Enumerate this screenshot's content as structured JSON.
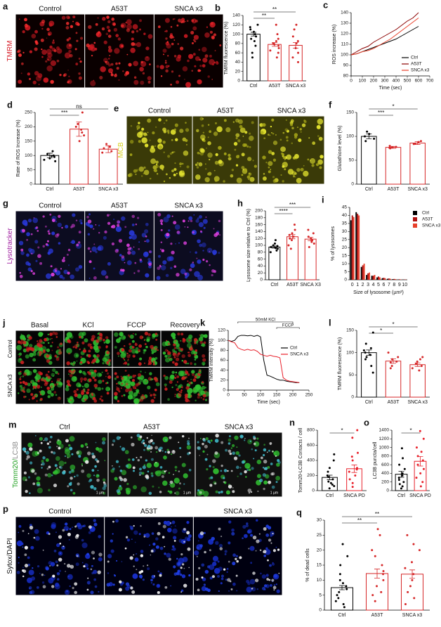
{
  "images": [
    {
      "letter": "a",
      "label_parts": [
        {
          "text": "TMRM",
          "color": "#d8202a"
        }
      ],
      "columns": [
        "Control",
        "A53T",
        "SNCA x3"
      ],
      "background": "#0a0000",
      "stains": [
        "#c81820",
        "#ff3030"
      ]
    },
    {
      "letter": "e",
      "label_parts": [
        {
          "text": "MCB",
          "color": "#d8d020"
        }
      ],
      "columns": [
        "Control",
        "A53T",
        "SNCA x3"
      ],
      "background": "#3a3a08",
      "stains": [
        "#e8e830",
        "#a8a818"
      ]
    },
    {
      "letter": "g",
      "label_parts": [
        {
          "text": "Lysotracker",
          "color": "#a020a0"
        }
      ],
      "columns": [
        "Control",
        "A53T",
        "SNCA x3"
      ],
      "background": "#0c0c20",
      "stains": [
        "#2838d8",
        "#e040e0"
      ]
    },
    {
      "letter": "j",
      "rows": [
        "Control",
        "SNCA x3"
      ],
      "columns": [
        "Basal",
        "KCl",
        "FCCP",
        "Recovery"
      ],
      "background": "#050505",
      "stains": [
        "#30c030",
        "#d02020"
      ]
    },
    {
      "letter": "m",
      "label_parts": [
        {
          "text": "Tomm20/",
          "color": "#20a020"
        },
        {
          "text": "LC3B",
          "color": "#888888"
        }
      ],
      "columns": [
        "Ctrl",
        "A53T",
        "SNCA x3"
      ],
      "scale_label": "1 µm",
      "background": "#101010",
      "stains": [
        "#30c030",
        "#e8e8e8",
        "#40b8c8"
      ]
    },
    {
      "letter": "p",
      "label_parts": [
        {
          "text": "Sytox/DAPI",
          "color": "#111111"
        }
      ],
      "columns": [
        "Control",
        "A53T",
        "SNCA x3"
      ],
      "background": "#000010",
      "stains": [
        "#1830d0",
        "#2040e8",
        "#ffffff"
      ]
    }
  ],
  "chart_data": [
    {
      "type": "bar",
      "letter": "b",
      "y_label": "TMRM fluorescence (%)",
      "categories": [
        "Ctrl",
        "A53T",
        "SNCA x3"
      ],
      "values": [
        100,
        78,
        76
      ],
      "errors": [
        4,
        4,
        6
      ],
      "colors": [
        "#000000",
        "#d62728",
        "#d62728"
      ],
      "points": [
        [
          120,
          115,
          110,
          105,
          100,
          95,
          90,
          85,
          75,
          60,
          50
        ],
        [
          120,
          100,
          90,
          85,
          80,
          78,
          75,
          70,
          65,
          60,
          50
        ],
        [
          120,
          110,
          95,
          85,
          80,
          70,
          60,
          50,
          40
        ]
      ],
      "ylim": [
        0,
        140
      ],
      "yticks": [
        0,
        20,
        40,
        60,
        80,
        100,
        120,
        140
      ],
      "annotations": [
        {
          "text": "**",
          "between": [
            "Ctrl",
            "A53T"
          ]
        },
        {
          "text": "**",
          "between": [
            "Ctrl",
            "SNCA x3"
          ]
        }
      ]
    },
    {
      "type": "line",
      "letter": "c",
      "y_label": "ROS increase (%)",
      "x_label": "Time (sec)",
      "legend": "lower right",
      "x": [
        0,
        50,
        100,
        150,
        200,
        250,
        300,
        350,
        400,
        450,
        500,
        550,
        600
      ],
      "series": [
        {
          "name": "Ctrl",
          "color": "#000000",
          "values": [
            100,
            101,
            103,
            105,
            107,
            109,
            111,
            113,
            115,
            118,
            121,
            124,
            127
          ]
        },
        {
          "name": "A53T",
          "color": "#8b0000",
          "values": [
            100,
            103,
            106,
            108,
            112,
            115,
            118,
            121,
            124,
            128,
            132,
            135,
            140
          ]
        },
        {
          "name": "SNCA x3",
          "color": "#e8402a",
          "values": [
            100,
            101,
            103,
            104,
            106,
            109,
            112,
            115,
            119,
            123,
            127,
            131,
            135
          ]
        }
      ],
      "xlim": [
        0,
        700
      ],
      "xticks": [
        0,
        100,
        200,
        300,
        400,
        500,
        600,
        700
      ],
      "ylim": [
        80,
        140
      ],
      "yticks": [
        80,
        90,
        100,
        110,
        120,
        130,
        140
      ]
    },
    {
      "type": "bar",
      "letter": "d",
      "y_label": "Rate of ROS Increase (%)",
      "categories": [
        "Ctrl",
        "A53T",
        "SNCA x3"
      ],
      "values": [
        100,
        192,
        122
      ],
      "errors": [
        8,
        25,
        12
      ],
      "colors": [
        "#000000",
        "#d62728",
        "#d62728"
      ],
      "points": [
        [
          115,
          105,
          100,
          98,
          95,
          90,
          85,
          80
        ],
        [
          250,
          210,
          200,
          190,
          180,
          170,
          150
        ],
        [
          140,
          130,
          125,
          115,
          110
        ]
      ],
      "ylim": [
        0,
        250
      ],
      "yticks": [
        0,
        50,
        100,
        150,
        200,
        250
      ],
      "annotations": [
        {
          "text": "***",
          "between": [
            "Ctrl",
            "A53T"
          ]
        },
        {
          "text": "ns",
          "between": [
            "Ctrl",
            "SNCA x3"
          ]
        }
      ]
    },
    {
      "type": "bar",
      "letter": "f",
      "y_label": "Glutathione level (%)",
      "categories": [
        "Ctrl",
        "A53T",
        "SNCA x3"
      ],
      "values": [
        100,
        77,
        86
      ],
      "errors": [
        5,
        2,
        3
      ],
      "colors": [
        "#000000",
        "#d62728",
        "#d62728"
      ],
      "points": [
        [
          110,
          105,
          100,
          95,
          90
        ],
        [
          80,
          78,
          77,
          75,
          76
        ],
        [
          90,
          88,
          85,
          84
        ]
      ],
      "ylim": [
        0,
        150
      ],
      "yticks": [
        0,
        50,
        100,
        150
      ],
      "annotations": [
        {
          "text": "***",
          "between": [
            "Ctrl",
            "A53T"
          ]
        },
        {
          "text": "*",
          "between": [
            "Ctrl",
            "SNCA x3"
          ]
        }
      ]
    },
    {
      "type": "bar",
      "letter": "h",
      "y_label": "Lysosome size relative to Ctrl (%)",
      "categories": [
        "Ctrl",
        "A53T",
        "SNCA X3"
      ],
      "values": [
        95,
        125,
        118
      ],
      "errors": [
        3,
        6,
        5
      ],
      "colors": [
        "#000000",
        "#d62728",
        "#d62728"
      ],
      "points": [
        [
          115,
          105,
          100,
          98,
          95,
          92,
          90,
          85,
          80
        ],
        [
          160,
          145,
          135,
          130,
          125,
          120,
          115,
          100,
          90
        ],
        [
          145,
          135,
          125,
          120,
          115,
          110,
          105,
          95
        ]
      ],
      "ylim": [
        0,
        200
      ],
      "yticks": [
        0,
        20,
        40,
        60,
        80,
        100,
        120,
        140,
        160,
        180,
        200
      ],
      "annotations": [
        {
          "text": "****",
          "between": [
            "Ctrl",
            "A53T"
          ]
        },
        {
          "text": "***",
          "between": [
            "Ctrl",
            "SNCA X3"
          ]
        }
      ]
    },
    {
      "type": "bar",
      "letter": "i",
      "y_label": "% of lysosomes",
      "x_label": "Size of lysosome (µm²)",
      "categories": [
        0,
        1,
        2,
        3,
        4,
        5,
        6,
        7,
        8,
        9,
        10
      ],
      "series": [
        {
          "name": "Ctrl",
          "color": "#000000",
          "values": [
            37,
            42,
            8,
            3,
            2.5,
            1.5,
            1,
            0.6,
            0.4,
            0.2,
            0.1
          ]
        },
        {
          "name": "A53T",
          "color": "#b01010",
          "values": [
            40,
            41,
            9,
            4,
            2.5,
            2,
            1.2,
            0.8,
            0.5,
            0.3,
            0.2
          ]
        },
        {
          "name": "SNCA x3",
          "color": "#e8402a",
          "values": [
            39,
            40,
            10,
            4.5,
            3,
            1.5,
            1,
            0.6,
            0.4,
            0.2,
            0.1
          ]
        }
      ],
      "ylim": [
        0,
        45
      ],
      "yticks": [
        0,
        5,
        10,
        15,
        20,
        25,
        30,
        35,
        40,
        45
      ]
    },
    {
      "type": "line",
      "letter": "k",
      "y_label": "TMRM intensity (%)",
      "x_label": "Time (sec)",
      "legend": "upper right",
      "x": [
        0,
        10,
        20,
        30,
        40,
        50,
        60,
        70,
        80,
        90,
        100,
        110,
        120,
        130,
        140,
        150,
        160,
        170,
        180,
        190,
        200,
        210,
        220
      ],
      "series": [
        {
          "name": "Ctrl",
          "color": "#000000",
          "values": [
            100,
            98,
            100,
            108,
            110,
            110,
            109,
            110,
            108,
            110,
            107,
            60,
            30,
            28,
            25,
            22,
            20,
            20,
            18,
            17,
            16,
            15,
            15
          ]
        },
        {
          "name": "SNCA x3",
          "color": "#e8202a",
          "values": [
            100,
            97,
            95,
            85,
            82,
            80,
            82,
            80,
            81,
            78,
            72,
            70,
            68,
            70,
            68,
            67,
            65,
            25,
            20,
            18,
            17,
            16,
            15
          ]
        }
      ],
      "annotations": [
        {
          "text": "50mM KCl",
          "x": [
            30,
            200
          ]
        },
        {
          "text": "FCCP",
          "x": [
            150,
            220
          ]
        }
      ],
      "xlim": [
        0,
        250
      ],
      "xticks": [
        0,
        50,
        100,
        150,
        200,
        250
      ],
      "ylim": [
        0,
        120
      ],
      "yticks": [
        0,
        20,
        40,
        60,
        80,
        100,
        120
      ]
    },
    {
      "type": "bar",
      "letter": "l",
      "y_label": "TMRM fluorescence (%)",
      "categories": [
        "Ctrl",
        "A53T",
        "SNCA x3"
      ],
      "values": [
        100,
        81,
        73
      ],
      "errors": [
        6,
        5,
        4
      ],
      "colors": [
        "#000000",
        "#d62728",
        "#d62728"
      ],
      "points": [
        [
          145,
          120,
          110,
          105,
          100,
          95,
          90,
          85,
          70,
          55
        ],
        [
          100,
          90,
          85,
          80,
          78,
          70,
          65
        ],
        [
          90,
          85,
          80,
          75,
          70,
          65,
          60
        ]
      ],
      "ylim": [
        0,
        150
      ],
      "yticks": [
        0,
        50,
        100,
        150
      ],
      "annotations": [
        {
          "text": "*",
          "between": [
            "Ctrl",
            "A53T"
          ]
        },
        {
          "text": "*",
          "between": [
            "Ctrl",
            "SNCA x3"
          ]
        }
      ]
    },
    {
      "type": "bar",
      "letter": "n",
      "y_label": "Tomm20-LC3B Contacts / cell",
      "categories": [
        "Ctrl",
        "SNCA PD"
      ],
      "values": [
        175,
        290
      ],
      "errors": [
        30,
        50
      ],
      "colors": [
        "#000000",
        "#e8202a"
      ],
      "points": [
        [
          480,
          400,
          300,
          250,
          200,
          180,
          150,
          120,
          100,
          80,
          60,
          30
        ],
        [
          800,
          700,
          500,
          450,
          400,
          300,
          280,
          250,
          200,
          150,
          100,
          50
        ]
      ],
      "ylim": [
        0,
        800
      ],
      "yticks": [
        0,
        200,
        400,
        600,
        800
      ],
      "annotations": [
        {
          "text": "*",
          "between": [
            "Ctrl",
            "SNCA PD"
          ]
        }
      ]
    },
    {
      "type": "bar",
      "letter": "o",
      "y_label": "LC3B puncta/cell",
      "categories": [
        "Ctrl",
        "SNCA PD"
      ],
      "values": [
        380,
        680
      ],
      "errors": [
        70,
        110
      ],
      "colors": [
        "#000000",
        "#e8202a"
      ],
      "points": [
        [
          980,
          750,
          600,
          500,
          400,
          350,
          300,
          250,
          200,
          150,
          100,
          50
        ],
        [
          1380,
          1200,
          1000,
          900,
          800,
          700,
          600,
          500,
          400,
          300,
          200,
          100
        ]
      ],
      "ylim": [
        0,
        1400
      ],
      "yticks": [
        0,
        200,
        400,
        600,
        800,
        1000,
        1200,
        1400
      ],
      "annotations": [
        {
          "text": "*",
          "between": [
            "Ctrl",
            "SNCA PD"
          ]
        }
      ]
    },
    {
      "type": "bar",
      "letter": "q",
      "y_label": "% of dead cells",
      "categories": [
        "Ctrl",
        "A53T",
        "SNCA x3"
      ],
      "values": [
        7.5,
        12.2,
        12.0
      ],
      "errors": [
        0.7,
        1.5,
        1.4
      ],
      "colors": [
        "#000000",
        "#d62728",
        "#d62728"
      ],
      "points": [
        [
          22,
          18,
          15,
          12,
          10,
          9,
          8,
          7,
          6,
          5,
          4,
          3,
          2,
          1
        ],
        [
          27,
          25,
          20,
          18,
          15,
          13,
          12,
          10,
          8,
          6,
          5,
          3
        ],
        [
          25,
          22,
          20,
          16,
          14,
          12,
          10,
          8,
          6,
          4,
          2
        ]
      ],
      "ylim": [
        0,
        30
      ],
      "yticks": [
        0,
        5,
        10,
        15,
        20,
        25,
        30
      ],
      "annotations": [
        {
          "text": "**",
          "between": [
            "Ctrl",
            "A53T"
          ]
        },
        {
          "text": "**",
          "between": [
            "Ctrl",
            "SNCA x3"
          ]
        }
      ]
    }
  ]
}
